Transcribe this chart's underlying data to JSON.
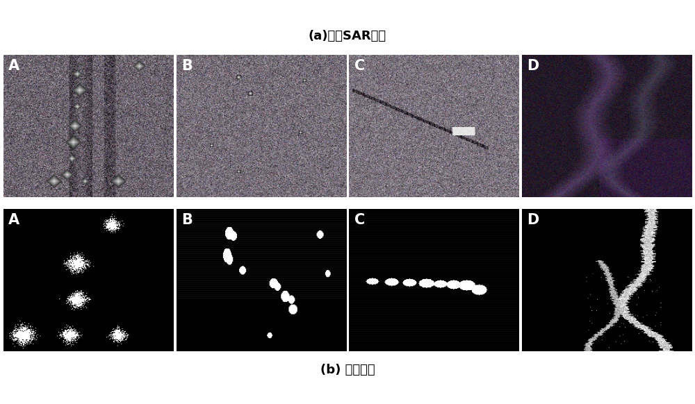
{
  "figure_width": 10.0,
  "figure_height": 5.82,
  "dpi": 100,
  "background_color": "#ffffff",
  "label_a": "A",
  "label_b": "B",
  "label_c": "C",
  "label_d": "D",
  "caption_top": "(a)原始SAR图像",
  "caption_bottom": "(b) 分割结果",
  "caption_fontsize": 13,
  "label_fontsize": 15,
  "label_color": "white",
  "label_fontweight": "bold"
}
